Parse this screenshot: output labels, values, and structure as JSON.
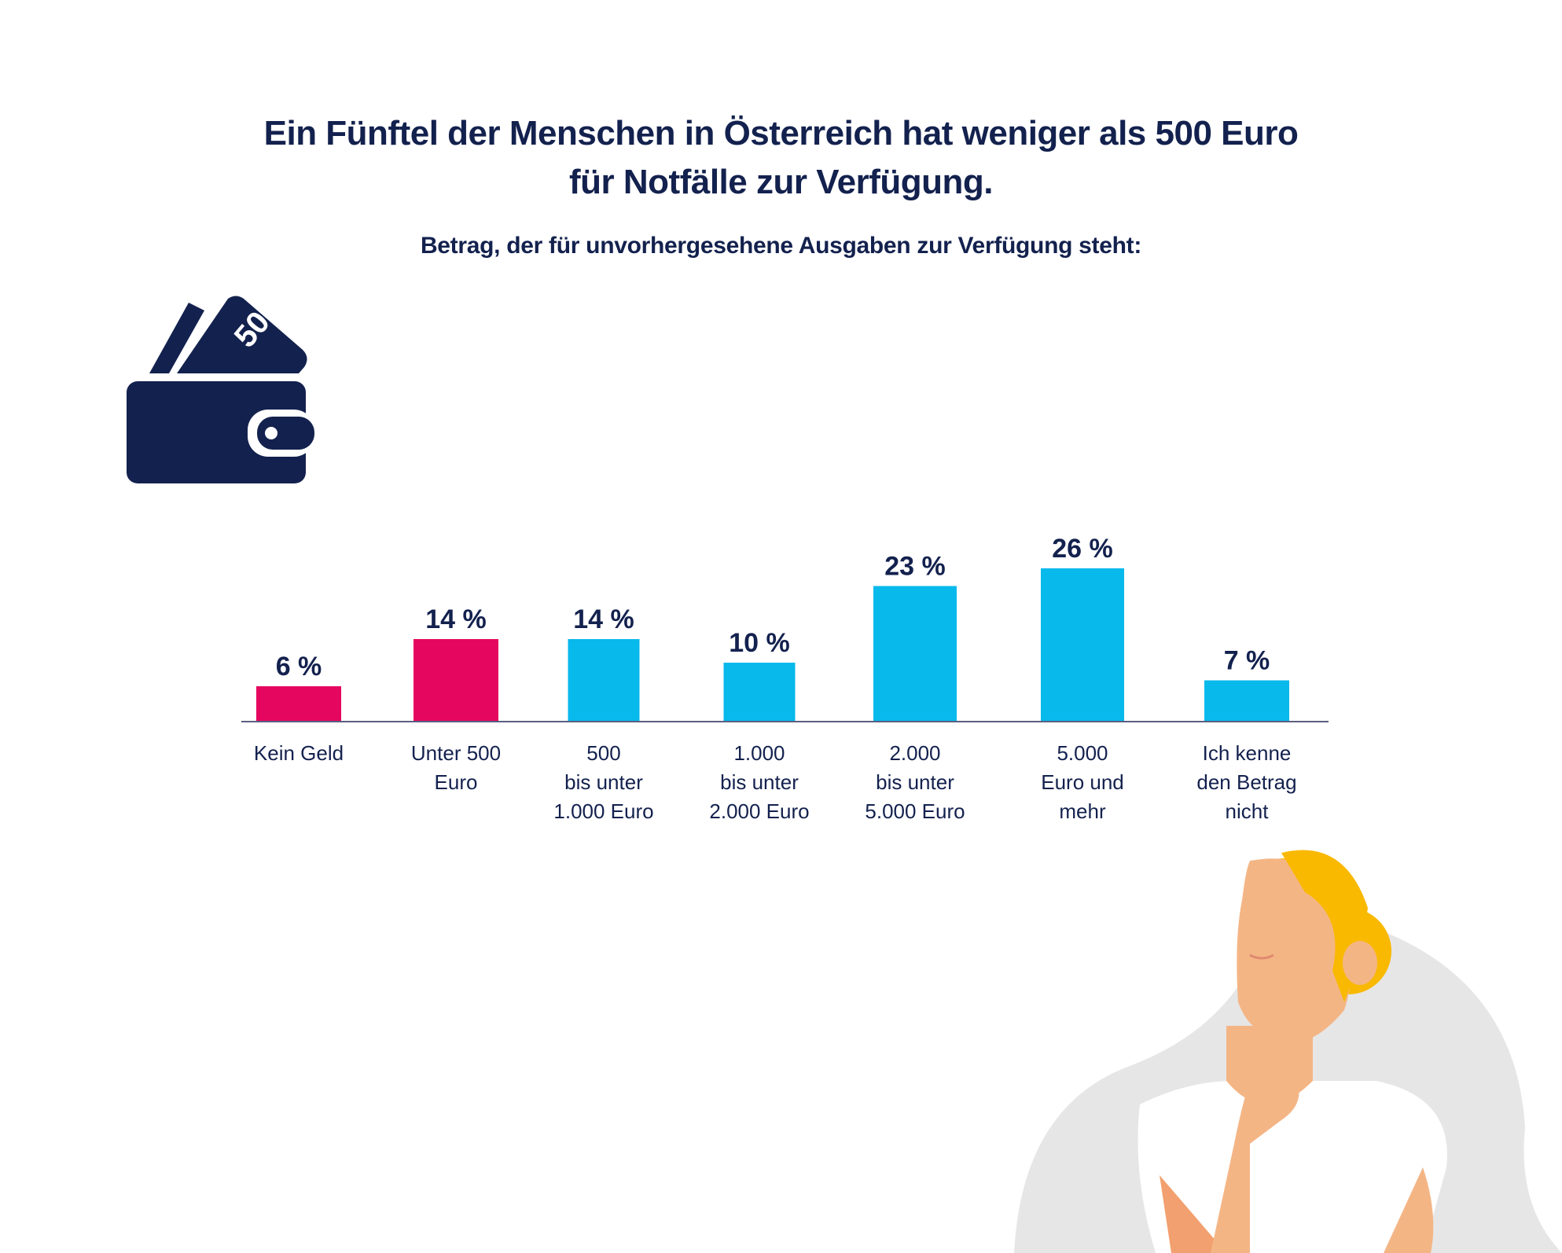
{
  "title_line1": "Ein Fünftel der Menschen in Österreich hat weniger als 500 Euro",
  "title_line2": "für Notfälle zur Verfügung.",
  "subtitle": "Betrag, der für unvorhergesehene Ausgaben zur Verfügung steht:",
  "icons": {
    "wallet": "wallet-with-50-banknotes-icon",
    "illustration": "thinking-woman"
  },
  "colors": {
    "highlight": "#e5065f",
    "default": "#08b9ec",
    "text": "#13214e",
    "axis": "#5a5f80"
  },
  "chart_data": {
    "type": "bar",
    "title": "Betrag, der für unvorhergesehene Ausgaben zur Verfügung steht:",
    "categories": [
      "Kein Geld",
      "Unter 500\nEuro",
      "500\nbis unter\n1.000 Euro",
      "1.000\nbis unter\n2.000 Euro",
      "2.000\nbis unter\n5.000 Euro",
      "5.000\nEuro und\nmehr",
      "Ich kenne\nden Betrag\nnicht"
    ],
    "values": [
      6,
      14,
      14,
      10,
      23,
      26,
      7
    ],
    "labels": [
      "6 %",
      "14 %",
      "14 %",
      "10 %",
      "23 %",
      "26 %",
      "7 %"
    ],
    "highlighted": [
      true,
      true,
      false,
      false,
      false,
      false,
      false
    ],
    "unit": "%",
    "xlabel": "",
    "ylabel": "",
    "ylim": [
      0,
      26
    ],
    "grid": false,
    "legend": "none"
  }
}
